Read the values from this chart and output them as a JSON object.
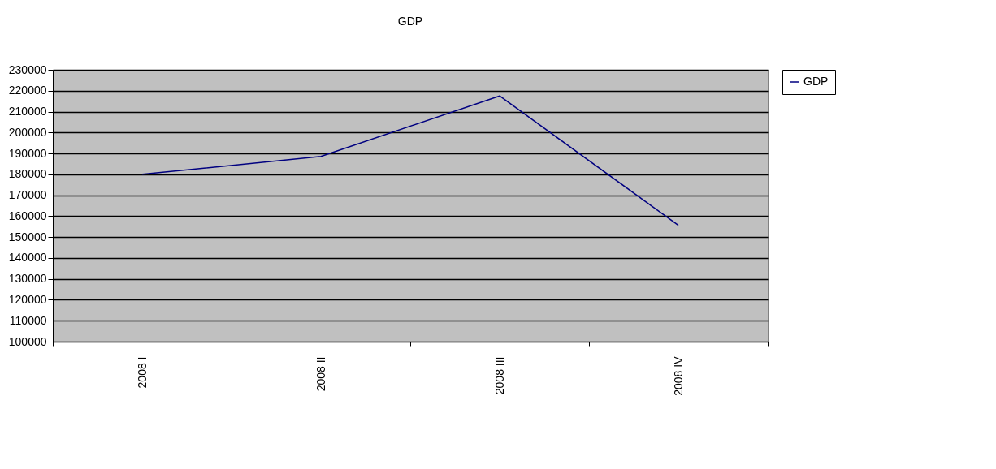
{
  "chart_data": {
    "type": "line",
    "title": "GDP",
    "categories": [
      "2008 I",
      "2008 II",
      "2008 III",
      "2008 IV"
    ],
    "series": [
      {
        "name": "GDP",
        "color": "#000080",
        "values": [
          180000,
          188600,
          217500,
          155600
        ]
      }
    ],
    "ylim": [
      100000,
      230000
    ],
    "yticks": [
      100000,
      110000,
      120000,
      130000,
      140000,
      150000,
      160000,
      170000,
      180000,
      190000,
      200000,
      210000,
      220000,
      230000
    ],
    "grid": "y",
    "legend": "right",
    "marker": "none",
    "line_style": "solid"
  }
}
